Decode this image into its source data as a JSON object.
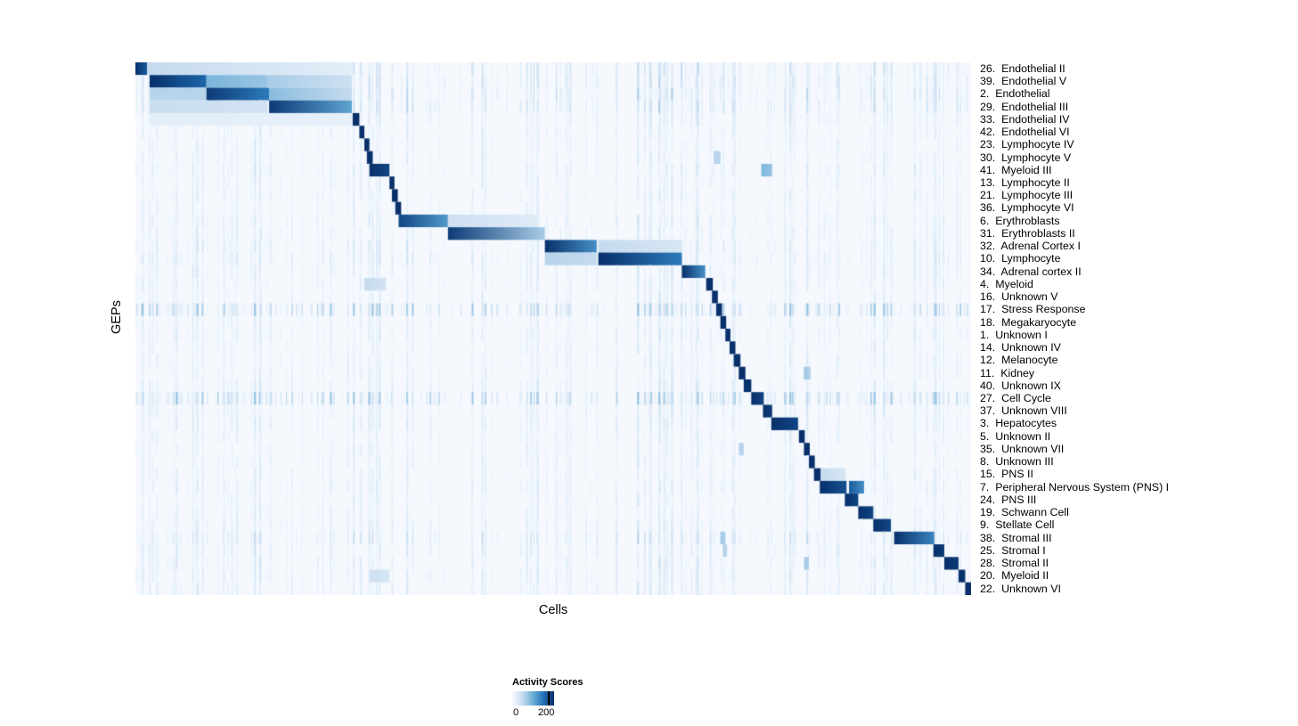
{
  "chart_data": {
    "type": "heatmap",
    "xlabel": "Cells",
    "ylabel": "GEPs",
    "colormap": [
      "#f7fbff",
      "#c6dbef",
      "#6baed6",
      "#2171b5",
      "#08306b"
    ],
    "scale_max": 240,
    "colorbar": {
      "title": "Activity Scores",
      "ticks": [
        0,
        200
      ],
      "tick_labels": [
        "0",
        "200"
      ]
    },
    "rows": [
      {
        "label": "26.  Endothelial II",
        "noise": 0.5,
        "blocks": [
          {
            "x0": 0.0,
            "x1": 0.014,
            "s0": 240,
            "s1": 200
          },
          {
            "x0": 0.014,
            "x1": 0.26,
            "s0": 60,
            "s1": 25
          }
        ]
      },
      {
        "label": "39.  Endothelial V",
        "noise": 0.5,
        "blocks": [
          {
            "x0": 0.017,
            "x1": 0.085,
            "s0": 240,
            "s1": 190
          },
          {
            "x0": 0.085,
            "x1": 0.158,
            "s0": 110,
            "s1": 90
          },
          {
            "x0": 0.158,
            "x1": 0.259,
            "s0": 80,
            "s1": 50
          }
        ]
      },
      {
        "label": "2.  Endothelial",
        "noise": 0.5,
        "blocks": [
          {
            "x0": 0.017,
            "x1": 0.085,
            "s0": 70,
            "s1": 70
          },
          {
            "x0": 0.085,
            "x1": 0.16,
            "s0": 230,
            "s1": 170
          },
          {
            "x0": 0.16,
            "x1": 0.259,
            "s0": 100,
            "s1": 60
          }
        ]
      },
      {
        "label": "29.  Endothelial III",
        "noise": 0.5,
        "blocks": [
          {
            "x0": 0.017,
            "x1": 0.158,
            "s0": 55,
            "s1": 45
          },
          {
            "x0": 0.16,
            "x1": 0.259,
            "s0": 230,
            "s1": 130
          }
        ]
      },
      {
        "label": "33.  Endothelial IV",
        "noise": 0.3,
        "blocks": [
          {
            "x0": 0.017,
            "x1": 0.259,
            "s0": 25,
            "s1": 20
          },
          {
            "x0": 0.26,
            "x1": 0.268,
            "s0": 240,
            "s1": 240
          }
        ]
      },
      {
        "label": "42.  Endothelial VI",
        "noise": 0.25,
        "blocks": [
          {
            "x0": 0.268,
            "x1": 0.274,
            "s0": 240,
            "s1": 240
          }
        ]
      },
      {
        "label": "23.  Lymphocyte IV",
        "noise": 0.25,
        "blocks": [
          {
            "x0": 0.274,
            "x1": 0.28,
            "s0": 240,
            "s1": 240
          }
        ]
      },
      {
        "label": "30.  Lymphocyte V",
        "noise": 0.25,
        "blocks": [
          {
            "x0": 0.277,
            "x1": 0.284,
            "s0": 240,
            "s1": 240
          },
          {
            "x0": 0.692,
            "x1": 0.7,
            "s0": 70,
            "s1": 70
          }
        ]
      },
      {
        "label": "41.  Myeloid III",
        "noise": 0.3,
        "blocks": [
          {
            "x0": 0.28,
            "x1": 0.304,
            "s0": 240,
            "s1": 220
          },
          {
            "x0": 0.749,
            "x1": 0.762,
            "s0": 110,
            "s1": 90
          }
        ]
      },
      {
        "label": "13.  Lymphocyte II",
        "noise": 0.25,
        "blocks": [
          {
            "x0": 0.304,
            "x1": 0.31,
            "s0": 240,
            "s1": 240
          }
        ]
      },
      {
        "label": "21.  Lymphocyte III",
        "noise": 0.25,
        "blocks": [
          {
            "x0": 0.307,
            "x1": 0.314,
            "s0": 240,
            "s1": 240
          }
        ]
      },
      {
        "label": "36.  Lymphocyte VI",
        "noise": 0.25,
        "blocks": [
          {
            "x0": 0.311,
            "x1": 0.318,
            "s0": 240,
            "s1": 240
          }
        ]
      },
      {
        "label": "6.  Erythroblasts",
        "noise": 0.3,
        "blocks": [
          {
            "x0": 0.315,
            "x1": 0.374,
            "s0": 220,
            "s1": 140
          },
          {
            "x0": 0.374,
            "x1": 0.48,
            "s0": 50,
            "s1": 30
          }
        ]
      },
      {
        "label": "31.  Erythroblasts II",
        "noise": 0.3,
        "blocks": [
          {
            "x0": 0.374,
            "x1": 0.49,
            "s0": 230,
            "s1": 80
          }
        ]
      },
      {
        "label": "32.  Adrenal Cortex I",
        "noise": 0.35,
        "blocks": [
          {
            "x0": 0.49,
            "x1": 0.552,
            "s0": 240,
            "s1": 150
          },
          {
            "x0": 0.554,
            "x1": 0.654,
            "s0": 60,
            "s1": 40
          }
        ]
      },
      {
        "label": "10.  Lymphocyte",
        "noise": 0.4,
        "blocks": [
          {
            "x0": 0.49,
            "x1": 0.552,
            "s0": 70,
            "s1": 60
          },
          {
            "x0": 0.554,
            "x1": 0.654,
            "s0": 240,
            "s1": 170
          }
        ]
      },
      {
        "label": "34.  Adrenal cortex II",
        "noise": 0.3,
        "blocks": [
          {
            "x0": 0.654,
            "x1": 0.682,
            "s0": 240,
            "s1": 150
          }
        ]
      },
      {
        "label": "4.  Myeloid",
        "noise": 0.3,
        "blocks": [
          {
            "x0": 0.274,
            "x1": 0.3,
            "s0": 60,
            "s1": 45
          },
          {
            "x0": 0.683,
            "x1": 0.691,
            "s0": 240,
            "s1": 240
          }
        ]
      },
      {
        "label": "16.  Unknown V",
        "noise": 0.25,
        "blocks": [
          {
            "x0": 0.69,
            "x1": 0.697,
            "s0": 240,
            "s1": 240
          }
        ]
      },
      {
        "label": "17.  Stress Response",
        "noise": 1.0,
        "blocks": [
          {
            "x0": 0.695,
            "x1": 0.702,
            "s0": 240,
            "s1": 240
          }
        ]
      },
      {
        "label": "18.  Megakaryocyte",
        "noise": 0.25,
        "blocks": [
          {
            "x0": 0.7,
            "x1": 0.707,
            "s0": 240,
            "s1": 240
          }
        ]
      },
      {
        "label": "1.  Unknown I",
        "noise": 0.3,
        "blocks": [
          {
            "x0": 0.706,
            "x1": 0.712,
            "s0": 240,
            "s1": 240
          }
        ]
      },
      {
        "label": "14.  Unknown IV",
        "noise": 0.25,
        "blocks": [
          {
            "x0": 0.711,
            "x1": 0.718,
            "s0": 240,
            "s1": 240
          }
        ]
      },
      {
        "label": "12.  Melanocyte",
        "noise": 0.25,
        "blocks": [
          {
            "x0": 0.716,
            "x1": 0.724,
            "s0": 240,
            "s1": 240
          }
        ]
      },
      {
        "label": "11.  Kidney",
        "noise": 0.25,
        "blocks": [
          {
            "x0": 0.722,
            "x1": 0.73,
            "s0": 240,
            "s1": 240
          },
          {
            "x0": 0.8,
            "x1": 0.808,
            "s0": 90,
            "s1": 70
          }
        ]
      },
      {
        "label": "40.  Unknown IX",
        "noise": 0.3,
        "blocks": [
          {
            "x0": 0.728,
            "x1": 0.737,
            "s0": 240,
            "s1": 240
          }
        ]
      },
      {
        "label": "27.  Cell Cycle",
        "noise": 1.0,
        "blocks": [
          {
            "x0": 0.737,
            "x1": 0.752,
            "s0": 240,
            "s1": 220
          }
        ]
      },
      {
        "label": "37.  Unknown VIII",
        "noise": 0.3,
        "blocks": [
          {
            "x0": 0.751,
            "x1": 0.762,
            "s0": 240,
            "s1": 230
          }
        ]
      },
      {
        "label": "3.  Hepatocytes",
        "noise": 0.3,
        "blocks": [
          {
            "x0": 0.761,
            "x1": 0.793,
            "s0": 240,
            "s1": 220
          }
        ]
      },
      {
        "label": "5.  Unknown II",
        "noise": 0.25,
        "blocks": [
          {
            "x0": 0.794,
            "x1": 0.801,
            "s0": 240,
            "s1": 240
          }
        ]
      },
      {
        "label": "35.  Unknown VII",
        "noise": 0.25,
        "blocks": [
          {
            "x0": 0.722,
            "x1": 0.728,
            "s0": 70,
            "s1": 70
          },
          {
            "x0": 0.8,
            "x1": 0.807,
            "s0": 240,
            "s1": 240
          }
        ]
      },
      {
        "label": "8.  Unknown III",
        "noise": 0.25,
        "blocks": [
          {
            "x0": 0.806,
            "x1": 0.813,
            "s0": 240,
            "s1": 240
          }
        ]
      },
      {
        "label": "15.  PNS II",
        "noise": 0.25,
        "blocks": [
          {
            "x0": 0.812,
            "x1": 0.82,
            "s0": 240,
            "s1": 240
          },
          {
            "x0": 0.82,
            "x1": 0.85,
            "s0": 60,
            "s1": 40
          }
        ]
      },
      {
        "label": "7.  Peripheral Nervous System (PNS) I",
        "noise": 0.3,
        "blocks": [
          {
            "x0": 0.819,
            "x1": 0.851,
            "s0": 240,
            "s1": 210
          },
          {
            "x0": 0.854,
            "x1": 0.872,
            "s0": 200,
            "s1": 150
          }
        ]
      },
      {
        "label": "24.  PNS III",
        "noise": 0.25,
        "blocks": [
          {
            "x0": 0.849,
            "x1": 0.865,
            "s0": 240,
            "s1": 220
          }
        ]
      },
      {
        "label": "19.  Schwann Cell",
        "noise": 0.25,
        "blocks": [
          {
            "x0": 0.865,
            "x1": 0.883,
            "s0": 240,
            "s1": 220
          }
        ]
      },
      {
        "label": "9.  Stellate Cell",
        "noise": 0.3,
        "blocks": [
          {
            "x0": 0.883,
            "x1": 0.904,
            "s0": 240,
            "s1": 220
          }
        ]
      },
      {
        "label": "38.  Stromal III",
        "noise": 0.45,
        "blocks": [
          {
            "x0": 0.7,
            "x1": 0.706,
            "s0": 80,
            "s1": 80
          },
          {
            "x0": 0.908,
            "x1": 0.956,
            "s0": 240,
            "s1": 160
          }
        ]
      },
      {
        "label": "25.  Stromal I",
        "noise": 0.35,
        "blocks": [
          {
            "x0": 0.703,
            "x1": 0.708,
            "s0": 70,
            "s1": 70
          },
          {
            "x0": 0.955,
            "x1": 0.968,
            "s0": 240,
            "s1": 230
          }
        ]
      },
      {
        "label": "28.  Stromal II",
        "noise": 0.35,
        "blocks": [
          {
            "x0": 0.8,
            "x1": 0.806,
            "s0": 80,
            "s1": 80
          },
          {
            "x0": 0.968,
            "x1": 0.985,
            "s0": 240,
            "s1": 230
          }
        ]
      },
      {
        "label": "20.  Myeloid II",
        "noise": 0.3,
        "blocks": [
          {
            "x0": 0.28,
            "x1": 0.304,
            "s0": 50,
            "s1": 40
          },
          {
            "x0": 0.985,
            "x1": 0.993,
            "s0": 240,
            "s1": 240
          }
        ]
      },
      {
        "label": "22.  Unknown VI",
        "noise": 0.3,
        "blocks": [
          {
            "x0": 0.993,
            "x1": 1.0,
            "s0": 240,
            "s1": 240
          }
        ]
      }
    ]
  }
}
